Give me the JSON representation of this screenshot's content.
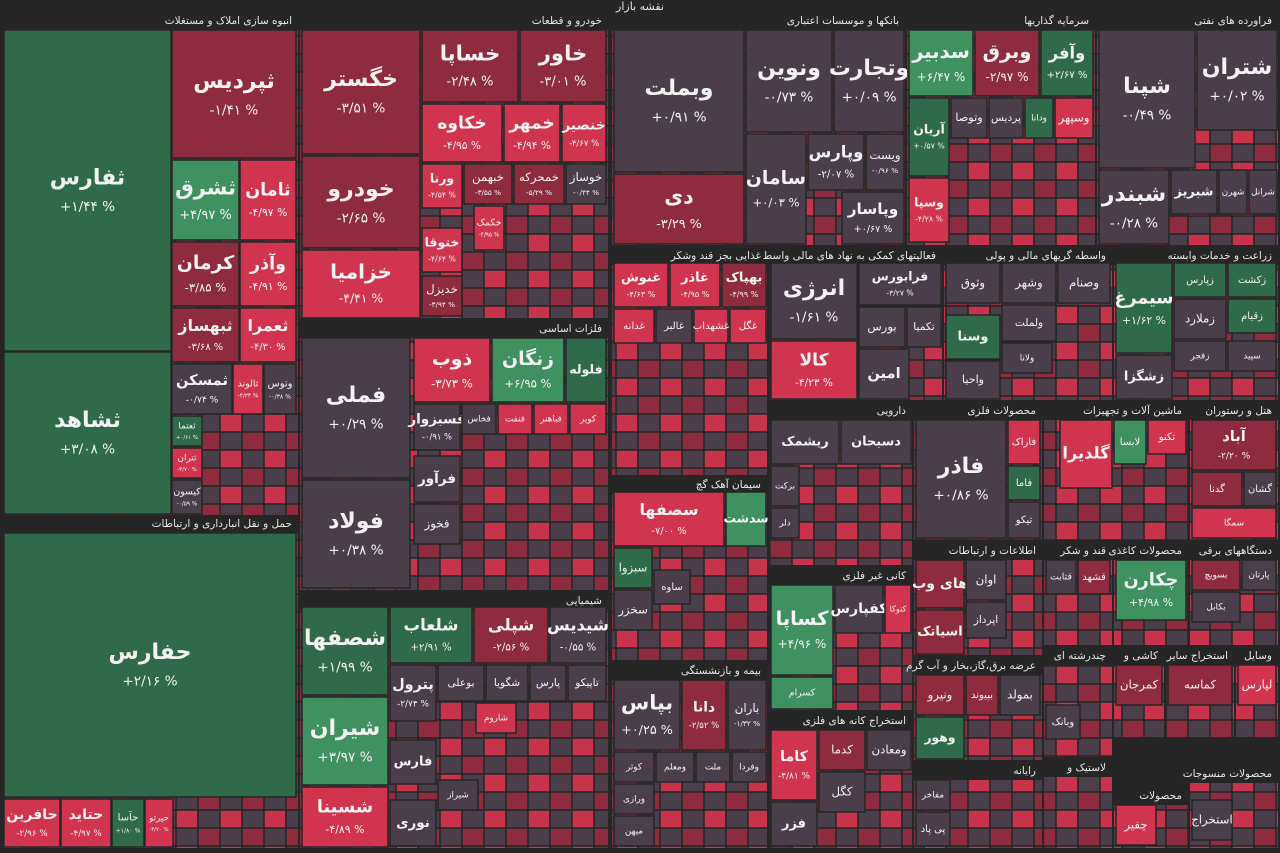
{
  "title": "نقشه بازار",
  "sectors": [
    {
      "title": "انبوه سازی املاک و مستغلات",
      "tiles": [
        {
          "name": "ثفارس",
          "change": "+۱/۴۴ %"
        },
        {
          "name": "ثشاهد",
          "change": "+۳/۰۸ %"
        },
        {
          "name": "ثپردیس",
          "change": "-۱/۴۱ %"
        },
        {
          "name": "ثشرق",
          "change": "+۴/۹۷ %"
        },
        {
          "name": "ثامان",
          "change": "-۴/۹۷ %"
        },
        {
          "name": "کرمان",
          "change": "-۳/۸۵ %"
        },
        {
          "name": "وآذر",
          "change": "-۴/۹۱ %"
        },
        {
          "name": "ثبهساز",
          "change": "-۳/۶۸ %"
        },
        {
          "name": "ثعمرا",
          "change": "-۴/۳۰ %"
        },
        {
          "name": "ثمسکن",
          "change": "-۰/۷۴ %"
        },
        {
          "name": "ثالوند",
          "change": "-۴/۳۴ %"
        },
        {
          "name": "وتوس",
          "change": "-۰/۳۸ %"
        },
        {
          "name": "ثعتما",
          "change": "+۰/۶۱ %"
        },
        {
          "name": "ثتران",
          "change": "-۳/۷۰ %"
        },
        {
          "name": "کیسون",
          "change": "-۰/۵۹ %"
        }
      ]
    },
    {
      "title": "حمل و نقل انبارداری و ارتباطات",
      "tiles": [
        {
          "name": "حفارس",
          "change": "+۲/۱۶ %"
        },
        {
          "name": "حافرین",
          "change": "-۲/۹۶ %"
        },
        {
          "name": "حتاید",
          "change": "-۴/۹۷ %"
        },
        {
          "name": "حآسا",
          "change": "+۱/۸۰ %"
        },
        {
          "name": "حپرتو",
          "change": "-۳/۷۰ %"
        }
      ]
    },
    {
      "title": "خودرو و قطعات",
      "tiles": [
        {
          "name": "خگستر",
          "change": "-۳/۵۱ %"
        },
        {
          "name": "خودرو",
          "change": "-۲/۶۵ %"
        },
        {
          "name": "خزامیا",
          "change": "-۴/۴۱ %"
        },
        {
          "name": "خساپا",
          "change": "-۲/۴۸ %"
        },
        {
          "name": "خاور",
          "change": "-۳/۰۱ %"
        },
        {
          "name": "خکاوه",
          "change": "-۴/۹۵ %"
        },
        {
          "name": "خمهر",
          "change": "-۴/۹۴ %"
        },
        {
          "name": "خنصیر",
          "change": "-۴/۶۷ %"
        },
        {
          "name": "خبهمن",
          "change": "-۳/۵۵ %"
        },
        {
          "name": "خمحرکه",
          "change": "-۵/۲۹ %"
        },
        {
          "name": "خوساز",
          "change": "-۰/۴۴ %"
        },
        {
          "name": "ورنا",
          "change": "-۴/۵۴ %"
        },
        {
          "name": "ختوقا",
          "change": "-۴/۶۴ %"
        },
        {
          "name": "خکمک",
          "change": "-۴/۹۵ %"
        },
        {
          "name": "خدیزل",
          "change": "-۳/۹۴ %"
        }
      ]
    },
    {
      "title": "فلزات اساسی",
      "tiles": [
        {
          "name": "فملی",
          "change": "+۰/۲۹ %"
        },
        {
          "name": "فولاد",
          "change": "+۰/۳۸ %"
        },
        {
          "name": "ذوب",
          "change": "-۳/۷۳ %"
        },
        {
          "name": "زنگان",
          "change": "+۶/۹۵ %"
        },
        {
          "name": "فلوله"
        },
        {
          "name": "فسبزوار",
          "change": "-۰/۹۱ %"
        },
        {
          "name": "فخاس"
        },
        {
          "name": "فنفت"
        },
        {
          "name": "فباهنر"
        },
        {
          "name": "کویر"
        },
        {
          "name": "فرآور"
        },
        {
          "name": "فخوز"
        }
      ]
    },
    {
      "title": "شیمیایی",
      "tiles": [
        {
          "name": "شصفها",
          "change": "+۱/۹۹ %"
        },
        {
          "name": "شیران",
          "change": "+۳/۹۷ %"
        },
        {
          "name": "شسینا",
          "change": "-۴/۸۹ %"
        },
        {
          "name": "شلعاب",
          "change": "+۲/۹۱ %"
        },
        {
          "name": "شپلی",
          "change": "-۲/۵۶ %"
        },
        {
          "name": "شیدیس",
          "change": "-۰/۵۵ %"
        },
        {
          "name": "پترول",
          "change": "-۲/۷۴ %"
        },
        {
          "name": "بوعلی"
        },
        {
          "name": "شگویا"
        },
        {
          "name": "پارس"
        },
        {
          "name": "تاپیکو"
        },
        {
          "name": "شاروم"
        },
        {
          "name": "شیراز"
        },
        {
          "name": "فارس"
        },
        {
          "name": "نوری"
        }
      ]
    },
    {
      "title": "بانکها و موسسات اعتباری",
      "tiles": [
        {
          "name": "وبملت",
          "change": "+۰/۹۱ %"
        },
        {
          "name": "دی",
          "change": "-۳/۲۹ %"
        },
        {
          "name": "ونوین",
          "change": "-۰/۷۳ %"
        },
        {
          "name": "وتجارت",
          "change": "+۰/۰۹ %"
        },
        {
          "name": "سامان",
          "change": "+۰/۰۳ %"
        },
        {
          "name": "وپارس",
          "change": "-۲/۰۷ %"
        },
        {
          "name": "ویست",
          "change": "-۰/۹۶ %"
        },
        {
          "name": "وپاسار",
          "change": "+۰/۶۷ %"
        }
      ]
    },
    {
      "title": "غذایی بجز قند وشکر",
      "tiles": [
        {
          "name": "غنوش",
          "change": "-۴/۶۳ %"
        },
        {
          "name": "غاذر",
          "change": "-۴/۹۵ %"
        },
        {
          "name": "بهپاک",
          "change": "-۴/۹۹ %"
        },
        {
          "name": "غدانه"
        },
        {
          "name": "غالبر"
        },
        {
          "name": "غشهداب"
        },
        {
          "name": "غگل"
        }
      ]
    },
    {
      "title": "سیمان آهک گچ",
      "tiles": [
        {
          "name": "سصفها",
          "change": "-۷/۰۰ %"
        },
        {
          "name": "سدشت"
        },
        {
          "name": "سبزوا"
        },
        {
          "name": "ساوه"
        },
        {
          "name": "سخزر"
        }
      ]
    },
    {
      "title": "بیمه و بازنشستگی",
      "tiles": [
        {
          "name": "بپاس",
          "change": "+۰/۲۵ %"
        },
        {
          "name": "دانا",
          "change": "-۲/۵۲ %"
        },
        {
          "name": "باران",
          "change": "-۱/۳۲ %"
        },
        {
          "name": "کوثر"
        },
        {
          "name": "ومعلم"
        },
        {
          "name": "ملت"
        },
        {
          "name": "وفردا"
        },
        {
          "name": "ورازی"
        },
        {
          "name": "میهن"
        }
      ]
    },
    {
      "title": "سرمایه گذاریها",
      "tiles": [
        {
          "name": "سدبیر",
          "change": "+۶/۴۷ %"
        },
        {
          "name": "وبرق",
          "change": "-۲/۹۷ %"
        },
        {
          "name": "وآفر",
          "change": "+۲/۶۷ %"
        },
        {
          "name": "آریان",
          "change": "+۰/۵۷ %"
        },
        {
          "name": "وتوصا"
        },
        {
          "name": "پردیس"
        },
        {
          "name": "ودانا"
        },
        {
          "name": "وسپهر"
        },
        {
          "name": "وسپا",
          "change": "-۴/۲۸ %"
        }
      ]
    },
    {
      "title": "فراورده های نفتی",
      "tiles": [
        {
          "name": "شپنا",
          "change": "-۰/۴۹ %"
        },
        {
          "name": "شتران",
          "change": "+۰/۰۲ %"
        },
        {
          "name": "شبندر",
          "change": "-۰/۲۸ %"
        },
        {
          "name": "شبریز"
        },
        {
          "name": "شهرن"
        },
        {
          "name": "شرانل"
        }
      ]
    },
    {
      "title": "فعالیتهای کمکی به نهاد های مالی واسط",
      "tiles": [
        {
          "name": "انرژی",
          "change": "-۱/۶۱ %"
        },
        {
          "name": "فرابورس",
          "change": "-۳/۲۷ %"
        },
        {
          "name": "بورس"
        },
        {
          "name": "تکمیا"
        },
        {
          "name": "کالا",
          "change": "-۴/۲۳ %"
        },
        {
          "name": "امین"
        }
      ]
    },
    {
      "title": "واسطه گریهای مالی و پولی",
      "tiles": [
        {
          "name": "وثوق"
        },
        {
          "name": "وشهر"
        },
        {
          "name": "وصنام"
        },
        {
          "name": "ولملت"
        },
        {
          "name": "وسنا"
        },
        {
          "name": "ولانا"
        },
        {
          "name": "واحیا"
        }
      ]
    },
    {
      "title": "زراعت و خدمات وابسته",
      "tiles": [
        {
          "name": "زکشت"
        },
        {
          "name": "زپارس"
        },
        {
          "name": "سیمرغ",
          "change": "+۱/۶۲ %"
        },
        {
          "name": "زملارد"
        },
        {
          "name": "زقیام"
        },
        {
          "name": "زفجر"
        },
        {
          "name": "زشگزا"
        },
        {
          "name": "سپید"
        }
      ]
    },
    {
      "title": "دارویی",
      "tiles": [
        {
          "name": "ریشمک"
        },
        {
          "name": "دسبحان"
        },
        {
          "name": "برکت"
        },
        {
          "name": "دلر"
        }
      ]
    },
    {
      "title": "محصولات فلزی",
      "tiles": [
        {
          "name": "فاذر",
          "change": "+۰/۸۶ %"
        },
        {
          "name": "فاراک"
        },
        {
          "name": "فاما"
        },
        {
          "name": "تیکو"
        }
      ]
    },
    {
      "title": "ماشین آلات و تجهیزات",
      "tiles": [
        {
          "name": "گلدیرا"
        },
        {
          "name": "لابسا"
        },
        {
          "name": "تکنو"
        }
      ]
    },
    {
      "title": "هتل و رستوران",
      "tiles": [
        {
          "name": "آباد",
          "change": "-۲/۲۰ %"
        },
        {
          "name": "گدنا"
        },
        {
          "name": "گشان"
        },
        {
          "name": "سمگا"
        }
      ]
    },
    {
      "title": "کانی غیر فلزی",
      "tiles": [
        {
          "name": "کساپا",
          "change": "+۴/۹۶ %"
        },
        {
          "name": "کفپارس"
        },
        {
          "name": "کتوکا"
        },
        {
          "name": "کسرام"
        }
      ]
    },
    {
      "title": "استخراج کانه های فلزی",
      "tiles": [
        {
          "name": "کاما",
          "change": "-۴/۸۱ %"
        },
        {
          "name": "کدما"
        },
        {
          "name": "ومعادن"
        },
        {
          "name": "کگل"
        },
        {
          "name": "فزر"
        }
      ]
    },
    {
      "title": "اطلاعات و ارتباطات",
      "tiles": [
        {
          "name": "های وب"
        },
        {
          "name": "اوان"
        },
        {
          "name": "اپرداز"
        },
        {
          "name": "اسیاتک"
        }
      ]
    },
    {
      "title": "عرضه برق،گاز،بخار و آب گرم",
      "tiles": [
        {
          "name": "ونیرو"
        },
        {
          "name": "بپیوند"
        },
        {
          "name": "بمولد"
        },
        {
          "name": "وهور"
        }
      ]
    },
    {
      "title": "رایانه",
      "tiles": [
        {
          "name": "مفاخر"
        },
        {
          "name": "پی پاد"
        }
      ]
    },
    {
      "title": "قند و شکر",
      "tiles": [
        {
          "name": "قثابت"
        },
        {
          "name": "قشهد"
        }
      ]
    },
    {
      "title": "محصولات کاغذی",
      "tiles": [
        {
          "name": "چکارن",
          "change": "+۴/۹۸ %"
        }
      ]
    },
    {
      "title": "دستگاههای برقی",
      "tiles": [
        {
          "name": "بسویچ"
        },
        {
          "name": "پارتان"
        },
        {
          "name": "بکابل"
        }
      ]
    },
    {
      "title": "چندرشته ای",
      "tiles": [
        {
          "name": "وبانک"
        }
      ]
    },
    {
      "title": "کاشی و",
      "tiles": [
        {
          "name": "کمرجان"
        }
      ]
    },
    {
      "title": "استخراج سایر",
      "tiles": [
        {
          "name": "کماسه"
        }
      ]
    },
    {
      "title": "وسایل",
      "tiles": [
        {
          "name": "لپارس"
        }
      ]
    },
    {
      "title": "لاستیک و",
      "tiles": []
    },
    {
      "title": "محصولات",
      "tiles": [
        {
          "name": "چفیر"
        }
      ]
    },
    {
      "title": "محصولات منسوجات",
      "tiles": [
        {
          "name": "استخراج"
        }
      ]
    }
  ]
}
